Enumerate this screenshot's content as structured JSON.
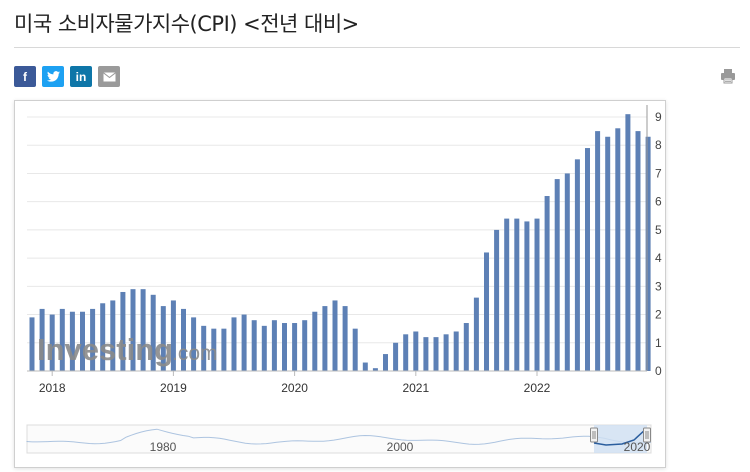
{
  "page": {
    "title": "미국 소비자물가지수(CPI) <전년 대비>"
  },
  "share": {
    "facebook": "f",
    "twitter": "twitter-icon",
    "linkedin": "in",
    "email": "email-icon",
    "print": "print-icon"
  },
  "watermark": {
    "main": "Investing",
    "suffix": ".com"
  },
  "colors": {
    "bar": "#5d80b5",
    "bar_edge": "#4a6c9e",
    "grid": "#e8e8e8",
    "navigator_fill": "#cfe0f3",
    "navigator_line": "#7aa0cf"
  },
  "chart_data": {
    "type": "bar",
    "title": "미국 소비자물가지수(CPI) <전년 대비>",
    "xlabel": "",
    "ylabel": "",
    "ylim": [
      0,
      9
    ],
    "yticks": [
      0,
      1,
      2,
      3,
      4,
      5,
      6,
      7,
      8,
      9
    ],
    "x_tick_labels": [
      "2018",
      "2019",
      "2020",
      "2021",
      "2022"
    ],
    "grid": true,
    "y_axis_side": "right",
    "series": [
      {
        "values": [
          1.9,
          2.2,
          2.0,
          2.2,
          2.1,
          2.1,
          2.2,
          2.4,
          2.5,
          2.8,
          2.9,
          2.9,
          2.7,
          2.3,
          2.5,
          2.2,
          1.9,
          1.6,
          1.5,
          1.5,
          1.9,
          2.0,
          1.8,
          1.6,
          1.8,
          1.7,
          1.7,
          1.8,
          2.1,
          2.3,
          2.5,
          2.3,
          1.5,
          0.3,
          0.1,
          0.6,
          1.0,
          1.3,
          1.4,
          1.2,
          1.2,
          1.3,
          1.4,
          1.7,
          2.6,
          4.2,
          5.0,
          5.4,
          5.4,
          5.3,
          5.4,
          6.2,
          6.8,
          7.0,
          7.5,
          7.9,
          8.5,
          8.3,
          8.6,
          9.1,
          8.5,
          8.3
        ]
      }
    ],
    "navigator": {
      "x_labels": [
        "1980",
        "2000",
        "2020"
      ]
    }
  }
}
